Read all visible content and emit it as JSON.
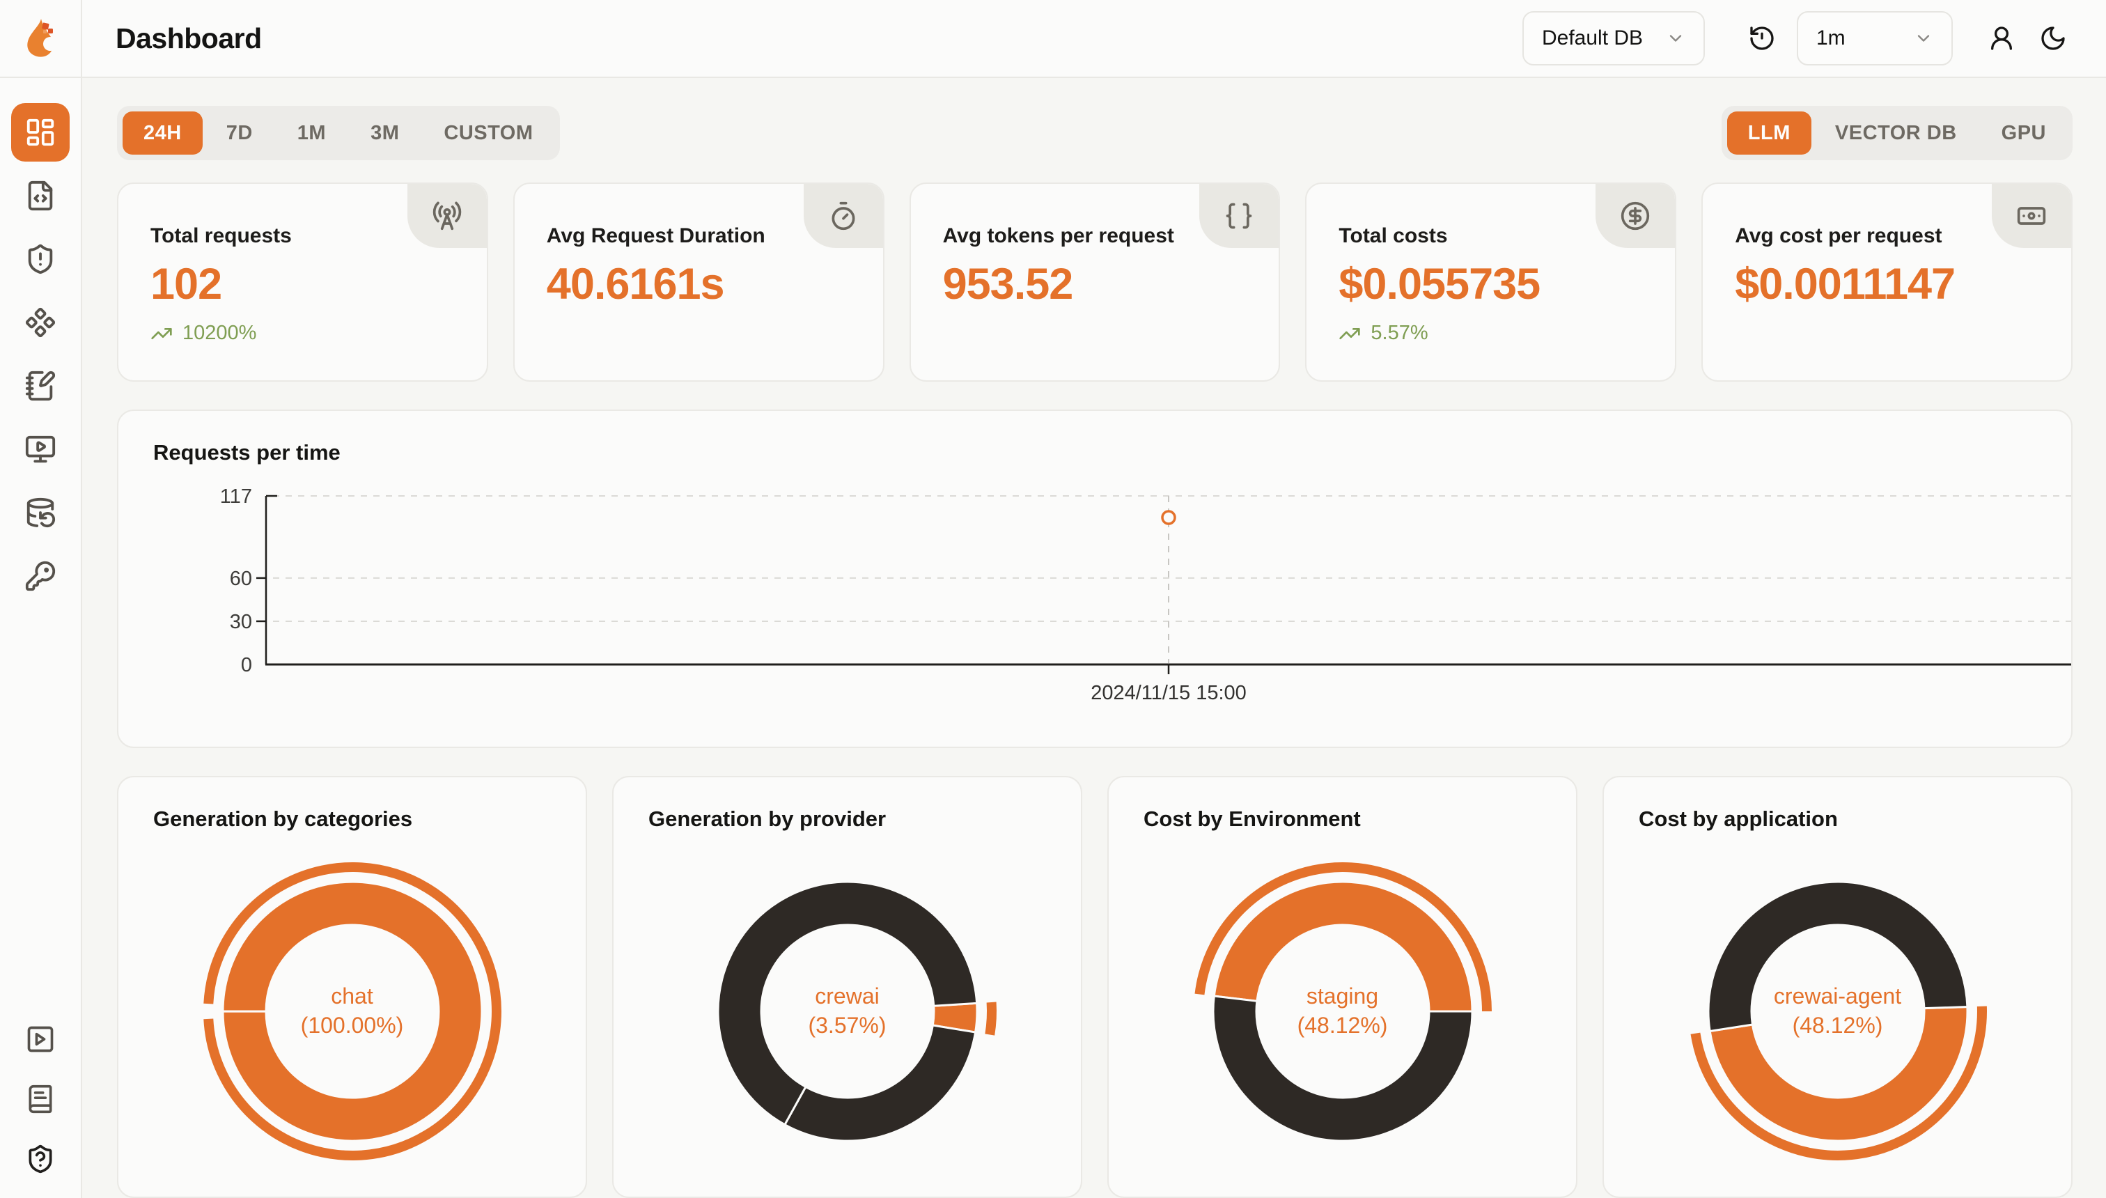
{
  "colors": {
    "accent": "#e4712a",
    "dark_slice": "#2e2925",
    "positive_green": "#7f9e52",
    "card_bg": "#fbfbfa"
  },
  "header": {
    "title": "Dashboard",
    "logo": "flame-logo",
    "db_select": {
      "value": "Default DB",
      "icon": "chevron-down-icon"
    },
    "refresh_button_icon": "history-icon",
    "interval_select": {
      "value": "1m",
      "icon": "chevron-down-icon"
    },
    "user_button_icon": "user-icon",
    "theme_toggle_icon": "moon-icon"
  },
  "sidebar": {
    "items": [
      {
        "icon": "layout-dashboard-icon",
        "active": true
      },
      {
        "icon": "file-code-icon",
        "active": false
      },
      {
        "icon": "shield-alert-icon",
        "active": false
      },
      {
        "icon": "component-icon",
        "active": false
      },
      {
        "icon": "notebook-pen-icon",
        "active": false
      },
      {
        "icon": "monitor-play-icon",
        "active": false
      },
      {
        "icon": "database-backup-icon",
        "active": false
      },
      {
        "icon": "key-icon",
        "active": false
      }
    ],
    "bottom_items": [
      {
        "icon": "square-play-icon"
      },
      {
        "icon": "book-icon"
      },
      {
        "icon": "shield-question-icon"
      }
    ]
  },
  "time_range_tabs": {
    "options": [
      "24H",
      "7D",
      "1M",
      "3M",
      "CUSTOM"
    ],
    "active": "24H"
  },
  "scope_tabs": {
    "options": [
      "LLM",
      "VECTOR DB",
      "GPU"
    ],
    "active": "LLM"
  },
  "stat_cards": [
    {
      "label": "Total requests",
      "value": "102",
      "trend": "10200%",
      "trend_direction": "up",
      "icon": "radio-tower-icon"
    },
    {
      "label": "Avg Request Duration",
      "value": "40.6161s",
      "icon": "timer-icon"
    },
    {
      "label": "Avg tokens per request",
      "value": "953.52",
      "icon": "braces-icon"
    },
    {
      "label": "Total costs",
      "value": "$0.055735",
      "trend": "5.57%",
      "trend_direction": "up",
      "icon": "circle-dollar-icon"
    },
    {
      "label": "Avg cost per request",
      "value": "$0.0011147",
      "icon": "banknote-icon"
    }
  ],
  "chart_data": [
    {
      "type": "line",
      "title": "Requests per time",
      "x": [
        "2024/11/15 15:00"
      ],
      "series": [
        {
          "name": "requests",
          "values": [
            102
          ]
        }
      ],
      "ylim": [
        0,
        117
      ],
      "yticks": [
        0,
        30,
        60,
        117
      ],
      "grid": "horizontal-dashed",
      "point_style": "hollow-circle",
      "point_x_fraction": 0.5,
      "legend": "none"
    },
    {
      "type": "pie",
      "title": "Generation by categories",
      "center_label": [
        "chat",
        "(100.00%)"
      ],
      "highlight": {
        "label": "chat",
        "pct": 100.0
      },
      "segments": [
        {
          "label": "chat",
          "pct": 100.0,
          "color": "accent",
          "highlighted": true,
          "start_deg": 270,
          "sweep_deg": 360
        }
      ]
    },
    {
      "type": "pie",
      "title": "Generation by provider",
      "center_label": [
        "crewai",
        "(3.57%)"
      ],
      "highlight": {
        "label": "crewai",
        "pct": 3.57
      },
      "segments": [
        {
          "label": "crewai",
          "pct": 3.57,
          "color": "accent",
          "highlighted": true,
          "start_deg": 86.4,
          "sweep_deg": 12.9
        },
        {
          "pct": 30.5,
          "color": "dark",
          "start_deg": 99.3,
          "sweep_deg": 109.7
        },
        {
          "pct": 65.9,
          "color": "dark",
          "start_deg": 209.0,
          "sweep_deg": 237.4
        }
      ]
    },
    {
      "type": "pie",
      "title": "Cost by Environment",
      "center_label": [
        "staging",
        "(48.12%)"
      ],
      "highlight": {
        "label": "staging",
        "pct": 48.12
      },
      "segments": [
        {
          "label": "staging",
          "pct": 48.12,
          "color": "accent",
          "highlighted": true,
          "start_deg": 276.8,
          "sweep_deg": 173.2
        },
        {
          "pct": 51.88,
          "color": "dark",
          "start_deg": 90.0,
          "sweep_deg": 186.8
        }
      ]
    },
    {
      "type": "pie",
      "title": "Cost by application",
      "center_label": [
        "crewai-agent",
        "(48.12%)"
      ],
      "highlight": {
        "label": "crewai-agent",
        "pct": 48.12
      },
      "segments": [
        {
          "label": "crewai-agent",
          "pct": 48.12,
          "color": "accent",
          "highlighted": true,
          "start_deg": 88.0,
          "sweep_deg": 173.2
        },
        {
          "pct": 51.88,
          "color": "dark",
          "start_deg": 261.2,
          "sweep_deg": 186.8
        }
      ]
    }
  ]
}
